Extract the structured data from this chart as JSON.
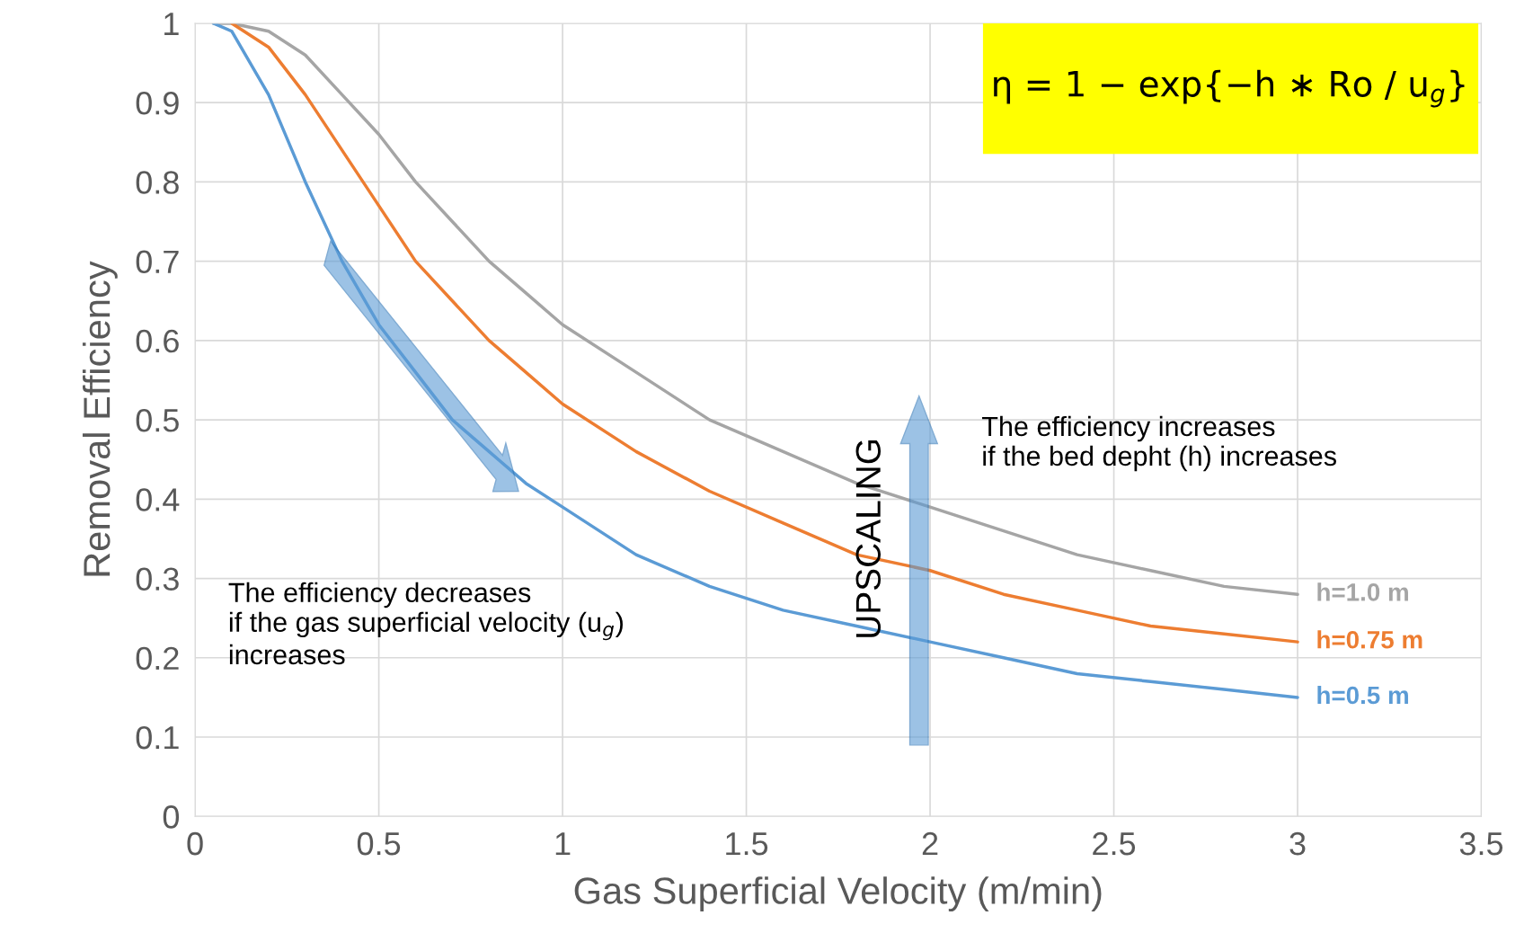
{
  "chart_data": {
    "type": "line",
    "xlabel": "Gas Superficial Velocity (m/min)",
    "ylabel": "Removal Efficiency",
    "x": [
      0.05,
      0.1,
      0.2,
      0.3,
      0.4,
      0.5,
      0.6,
      0.7,
      0.8,
      0.9,
      1.0,
      1.2,
      1.4,
      1.6,
      1.8,
      2.0,
      2.2,
      2.4,
      2.6,
      2.8,
      3.0
    ],
    "series": [
      {
        "name": "h=1.0 m",
        "color": "#a5a5a5",
        "values": [
          1,
          1,
          0.99,
          0.96,
          0.91,
          0.86,
          0.8,
          0.75,
          0.7,
          0.66,
          0.62,
          0.56,
          0.5,
          0.46,
          0.42,
          0.39,
          0.36,
          0.33,
          0.31,
          0.29,
          0.28
        ]
      },
      {
        "name": "h=0.75 m",
        "color": "#ed7d31",
        "values": [
          null,
          1,
          0.97,
          0.91,
          0.84,
          0.77,
          0.7,
          0.65,
          0.6,
          0.56,
          0.52,
          0.46,
          0.41,
          0.37,
          0.33,
          0.31,
          0.28,
          0.26,
          0.24,
          0.23,
          0.22
        ]
      },
      {
        "name": "h=0.5 m",
        "color": "#5b9bd5",
        "values": [
          1,
          0.99,
          0.91,
          0.8,
          0.7,
          0.62,
          0.56,
          0.5,
          0.46,
          0.42,
          0.39,
          0.33,
          0.29,
          0.26,
          0.24,
          0.22,
          0.2,
          0.18,
          0.17,
          0.16,
          0.15
        ]
      }
    ],
    "xlim": [
      0,
      3.5
    ],
    "xticks": [
      0,
      0.5,
      1,
      1.5,
      2,
      2.5,
      3,
      3.5
    ],
    "ylim": [
      0,
      1
    ],
    "yticks": [
      0,
      0.1,
      0.2,
      0.3,
      0.4,
      0.5,
      0.6,
      0.7,
      0.8,
      0.9,
      1
    ],
    "grid": true,
    "legend": false,
    "marker": "none",
    "line_style": "solid",
    "annotations": [
      "η = 1 − exp{−h ∗ Ro / u$_{g}$}",
      "The efficiency increases\nif the bed depht (h) increases",
      "The efficiency decreases\nif the gas superficial velocity (u$_{g}$)\nincreases",
      "UPSCALING"
    ]
  }
}
